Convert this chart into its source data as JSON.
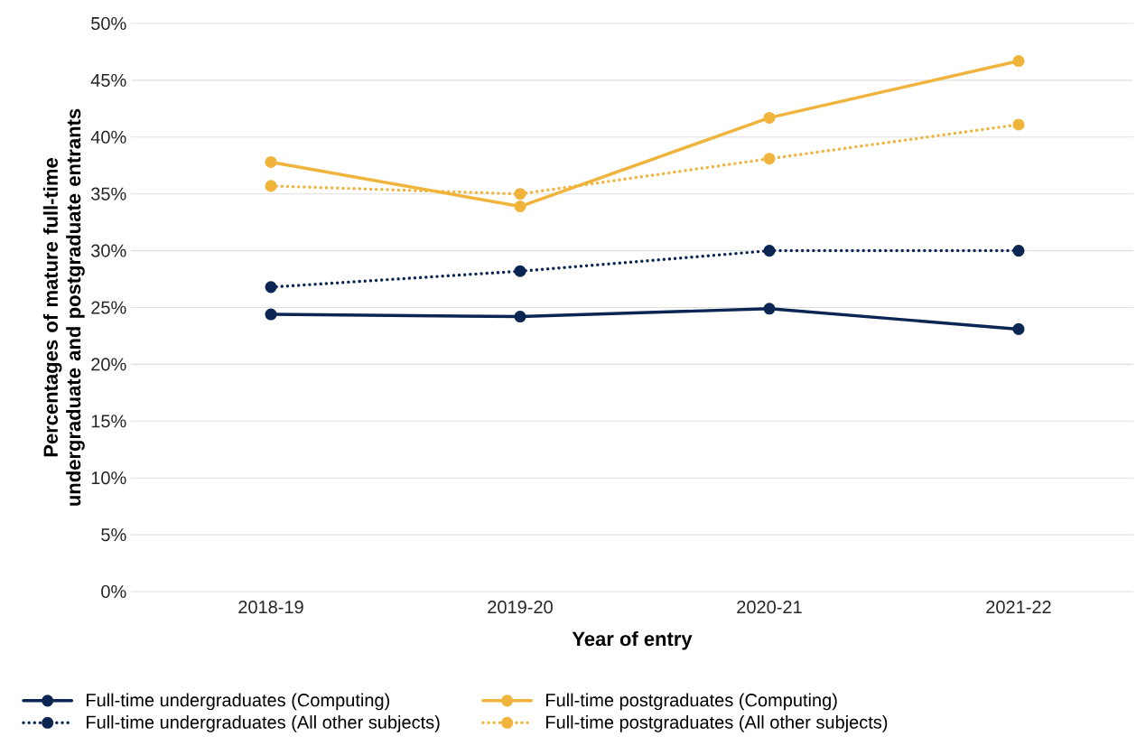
{
  "chart_data": {
    "type": "line",
    "xlabel": "Year of entry",
    "ylabel": "Percentages of mature full-time undergraduate and postgraduate entrants",
    "categories": [
      "2018-19",
      "2019-20",
      "2020-21",
      "2021-22"
    ],
    "series": [
      {
        "name": "Full-time undergraduates (Computing)",
        "color": "#0b2653",
        "line_style": "solid",
        "values": [
          24.4,
          24.2,
          24.9,
          23.1
        ]
      },
      {
        "name": "Full-time postgraduates (Computing)",
        "color": "#f0b43c",
        "line_style": "solid",
        "values": [
          37.8,
          33.9,
          41.7,
          46.7
        ]
      },
      {
        "name": "Full-time undergraduates (All other subjects)",
        "color": "#0b2653",
        "line_style": "dotted",
        "values": [
          26.8,
          28.2,
          30.0,
          30.0
        ]
      },
      {
        "name": "Full-time postgraduates (All other subjects)",
        "color": "#f0b43c",
        "line_style": "dotted",
        "values": [
          35.7,
          35.0,
          38.1,
          41.1
        ]
      }
    ],
    "ylim": [
      0,
      50
    ],
    "yticks": [
      {
        "value": 0,
        "label": "0%"
      },
      {
        "value": 5,
        "label": "5%"
      },
      {
        "value": 10,
        "label": "10%"
      },
      {
        "value": 15,
        "label": "15%"
      },
      {
        "value": 20,
        "label": "20%"
      },
      {
        "value": 25,
        "label": "25%"
      },
      {
        "value": 30,
        "label": "30%"
      },
      {
        "value": 35,
        "label": "35%"
      },
      {
        "value": 40,
        "label": "40%"
      },
      {
        "value": 45,
        "label": "45%"
      },
      {
        "value": 50,
        "label": "50%"
      }
    ],
    "grid": "y",
    "legend": "bottom",
    "marker": "circle"
  }
}
